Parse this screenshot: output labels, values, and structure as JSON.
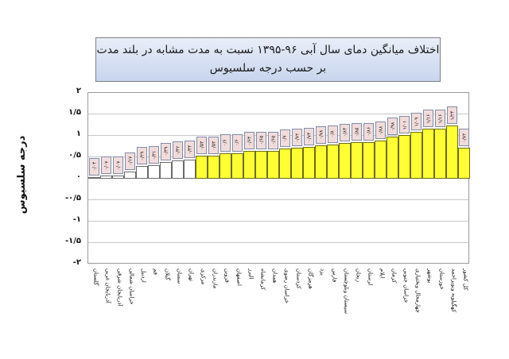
{
  "chart_data": {
    "type": "bar",
    "title": "اختلاف میانگین دمای سال آبی ۹۶-۱۳۹۵ نسبت به مدت مشابه در بلند مدت",
    "subtitle": "بر حسب درجه سلسیوس",
    "xlabel": "",
    "ylabel": "درجه سلسیوس",
    "ylim": [
      -2,
      2
    ],
    "yticks": [
      2,
      1.5,
      1,
      0.5,
      0,
      -0.5,
      -1,
      -1.5,
      -2
    ],
    "ytick_labels": [
      "۲",
      "۱/۵",
      "۱",
      "۰/۵",
      "۰",
      "-۰/۵",
      "-۱",
      "-۱/۵",
      "-۲"
    ],
    "grid": true,
    "legend": "none",
    "categories": [
      "گلستان",
      "آذربایجان غربی",
      "آذربایجان شرقی",
      "خراسان شمالی",
      "اردبیل",
      "قم",
      "گیلان",
      "سمنان",
      "تهران",
      "مرکزی",
      "مازندران",
      "قزوین",
      "اصفهان",
      "البرز",
      "کرمانشاه",
      "همدان",
      "خراسان رضوی",
      "کردستان",
      "هرمزگان",
      "یزد",
      "فارس",
      "سیستان وبلوچستان",
      "زنجان",
      "لرستان",
      "ایلام",
      "کرمان",
      "خراسان جنوبی",
      "چهارمحال وبختیاری",
      "بوشهر",
      "خوزستان",
      "کهگیلویه وبویراحمد",
      "کل کشور"
    ],
    "values": [
      0.04,
      0.07,
      0.07,
      0.17,
      0.29,
      0.31,
      0.39,
      0.42,
      0.44,
      0.53,
      0.53,
      0.6,
      0.6,
      0.64,
      0.65,
      0.65,
      0.7,
      0.72,
      0.74,
      0.78,
      0.8,
      0.84,
      0.85,
      0.86,
      0.88,
      0.98,
      1.01,
      1.09,
      1.16,
      1.16,
      1.24,
      0.72
    ],
    "value_labels": [
      "۰/۰۴",
      "۰/۰۷",
      "۰/۰۷",
      "۰/۱۷",
      "۰/۲۹",
      "۰/۳۱",
      "۰/۳۹",
      "۰/۴۲",
      "۰/۴۴",
      "۰/۵۳",
      "۰/۵۳",
      "۰/۶",
      "۰/۶",
      "۰/۶۴",
      "۰/۶۵",
      "۰/۶۵",
      "۰/۷",
      "۰/۷۲",
      "۰/۷۴",
      "۰/۷۸",
      "۰/۸",
      "۰/۸۴",
      "۰/۸۵",
      "۰/۸۶",
      "۰/۸۸",
      "۰/۹۸",
      "۱/۰۱",
      "۱/۰۹",
      "۱/۱۶",
      "۱/۱۶",
      "۱/۲۴",
      "۰/۷۲"
    ],
    "bar_colors": {
      "below_half": "#ffffff",
      "above_half": "#ffff33"
    },
    "label_box_color": "#f2dcdb"
  }
}
